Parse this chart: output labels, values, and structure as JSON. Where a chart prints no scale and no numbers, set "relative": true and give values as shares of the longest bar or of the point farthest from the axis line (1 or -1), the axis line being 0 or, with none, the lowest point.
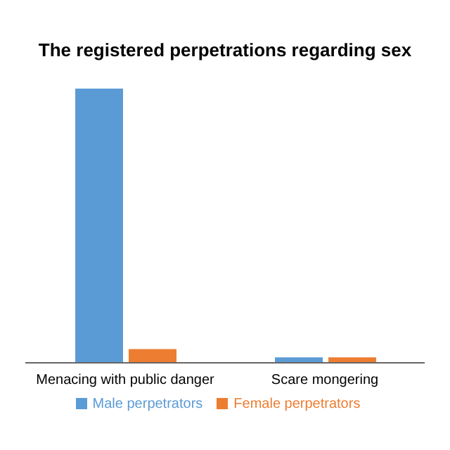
{
  "chart_data": {
    "type": "bar",
    "title": "The registered perpetrations regarding sex",
    "categories": [
      "Menacing with public danger",
      "Scare mongering"
    ],
    "relative": true,
    "legend": "bottom",
    "series": [
      {
        "name": "Male perpetrators",
        "color": "#5b9bd5",
        "values": [
          1,
          0.02
        ]
      },
      {
        "name": "Female perpetrators",
        "color": "#ed7d31",
        "values": [
          0.05,
          0.02
        ]
      }
    ]
  }
}
